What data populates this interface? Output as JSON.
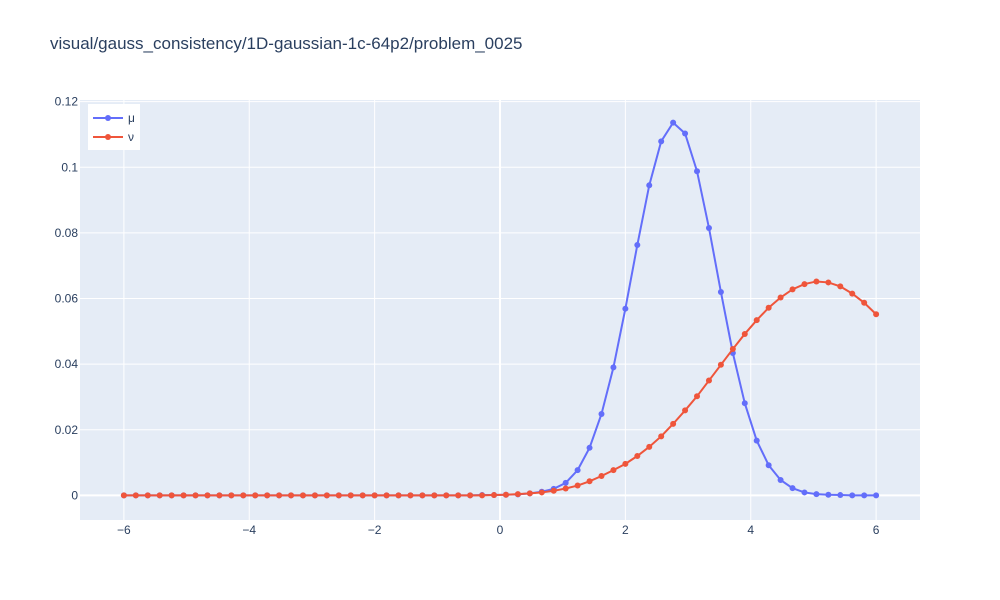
{
  "chart_data": {
    "type": "line",
    "title": "visual/gauss_consistency/1D-gaussian-1c-64p2/problem_0025",
    "xlabel": "",
    "ylabel": "",
    "xlim": [
      -6.7,
      6.7
    ],
    "ylim": [
      -0.0075,
      0.1205
    ],
    "x_ticks": [
      -6,
      -4,
      -2,
      0,
      2,
      4,
      6
    ],
    "x_tick_labels": [
      "−6",
      "−4",
      "−2",
      "0",
      "2",
      "4",
      "6"
    ],
    "y_ticks": [
      0,
      0.02,
      0.04,
      0.06,
      0.08,
      0.1,
      0.12
    ],
    "y_tick_labels": [
      "0",
      "0.02",
      "0.04",
      "0.06",
      "0.08",
      "0.1",
      "0.12"
    ],
    "grid": true,
    "legend_position": "top-left",
    "background_color": "#e5ecf6",
    "x": [
      -6.0,
      -5.809524,
      -5.619048,
      -5.428571,
      -5.238095,
      -5.047619,
      -4.857143,
      -4.666667,
      -4.47619,
      -4.285714,
      -4.095238,
      -3.904762,
      -3.714286,
      -3.52381,
      -3.333333,
      -3.142857,
      -2.952381,
      -2.761905,
      -2.571429,
      -2.380952,
      -2.190476,
      -2.0,
      -1.809524,
      -1.619048,
      -1.428571,
      -1.238095,
      -1.047619,
      -0.857143,
      -0.666667,
      -0.47619,
      -0.285714,
      -0.095238,
      0.095238,
      0.285714,
      0.47619,
      0.666667,
      0.857143,
      1.047619,
      1.238095,
      1.428571,
      1.619048,
      1.809524,
      2.0,
      2.190476,
      2.380952,
      2.571429,
      2.761905,
      2.952381,
      3.142857,
      3.333333,
      3.52381,
      3.714286,
      3.904762,
      4.095238,
      4.285714,
      4.47619,
      4.666667,
      4.857143,
      5.047619,
      5.238095,
      5.428571,
      5.619048,
      5.809524,
      6.0
    ],
    "series": [
      {
        "name": "μ",
        "color": "#636efa",
        "values": [
          0,
          0,
          0,
          0,
          0,
          0,
          0,
          0,
          0,
          0,
          0,
          0,
          0,
          0,
          0,
          0,
          0,
          0,
          0,
          0,
          0,
          0,
          0,
          0,
          0,
          0,
          0,
          0,
          0,
          0,
          0.0001,
          0.0001,
          0.0002,
          0.0003,
          0.0006,
          0.0011,
          0.002,
          0.0038,
          0.0077,
          0.0145,
          0.0248,
          0.039,
          0.0569,
          0.0763,
          0.0945,
          0.1079,
          0.1136,
          0.1103,
          0.0988,
          0.0815,
          0.062,
          0.0434,
          0.0281,
          0.0167,
          0.0092,
          0.0047,
          0.0022,
          0.0009,
          0.0004,
          0.0002,
          0.0001,
          0,
          0,
          0
        ]
      },
      {
        "name": "ν",
        "color": "#ef553b",
        "values": [
          0,
          0,
          0,
          0,
          0,
          0,
          0,
          0,
          0,
          0,
          0,
          0,
          0,
          0,
          0,
          0,
          0,
          0,
          0,
          0,
          0,
          0,
          0,
          0,
          0,
          0,
          0,
          0,
          0,
          0,
          0,
          0.0001,
          0.0002,
          0.0004,
          0.0006,
          0.0009,
          0.0014,
          0.0021,
          0.003,
          0.0043,
          0.0059,
          0.0077,
          0.0096,
          0.012,
          0.0148,
          0.018,
          0.0218,
          0.0259,
          0.0302,
          0.035,
          0.0398,
          0.0446,
          0.0492,
          0.0534,
          0.0572,
          0.0603,
          0.0628,
          0.0644,
          0.0652,
          0.0649,
          0.0637,
          0.0615,
          0.0587,
          0.0552
        ]
      }
    ]
  }
}
